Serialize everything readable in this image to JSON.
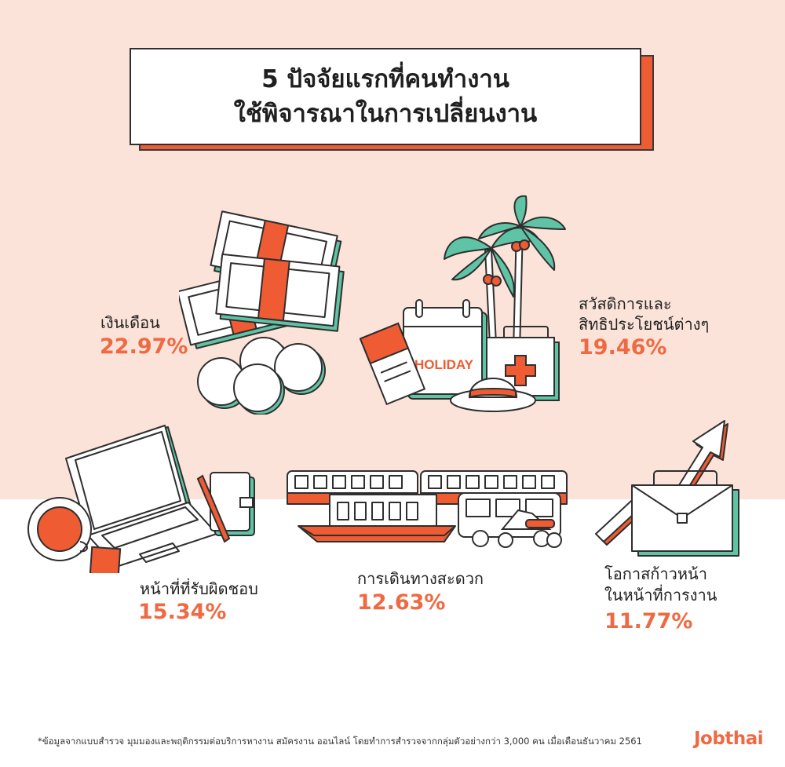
{
  "title": {
    "line1": "5 ปัจจัยแรกที่คนทำงาน",
    "line2": "ใช้พิจารณาในการเปลี่ยนงาน"
  },
  "factors": [
    {
      "label": "เงินเดือน",
      "percent": "22.97%"
    },
    {
      "label_line1": "สวัสดิการและ",
      "label_line2": "สิทธิประโยชน์ต่างๆ",
      "percent": "19.46%"
    },
    {
      "label": "หน้าที่ที่รับผิดชอบ",
      "percent": "15.34%"
    },
    {
      "label": "การเดินทางสะดวก",
      "percent": "12.63%"
    },
    {
      "label_line1": "โอกาสก้าวหน้า",
      "label_line2": "ในหน้าที่การงาน",
      "percent": "11.77%"
    }
  ],
  "holiday_text": "HOLIDAY",
  "footnote": "*ข้อมูลจากแบบสำรวจ มุมมองและพฤติกรรมต่อบริการหางาน สมัครงาน ออนไลน์ โดยทำการสำรวจจากกลุ่มตัวอย่างกว่า 3,000 คน เมื่อเดือนธันวาคม 2561",
  "logo": "Jobthai",
  "colors": {
    "accent": "#ef6a43",
    "teal": "#5fc4a5",
    "peach_bg": "#fbe3d9",
    "outline": "#2f2f2f"
  },
  "icons": [
    "money-stack-icon",
    "coin-icon",
    "palm-tree-icon",
    "calendar-icon",
    "first-aid-kit-icon",
    "ticket-icon",
    "hat-icon",
    "laptop-icon",
    "coffee-cup-icon",
    "notebook-icon",
    "pen-icon",
    "train-icon",
    "boat-icon",
    "tuk-tuk-icon",
    "scooter-icon",
    "briefcase-icon",
    "growth-arrow-icon"
  ]
}
